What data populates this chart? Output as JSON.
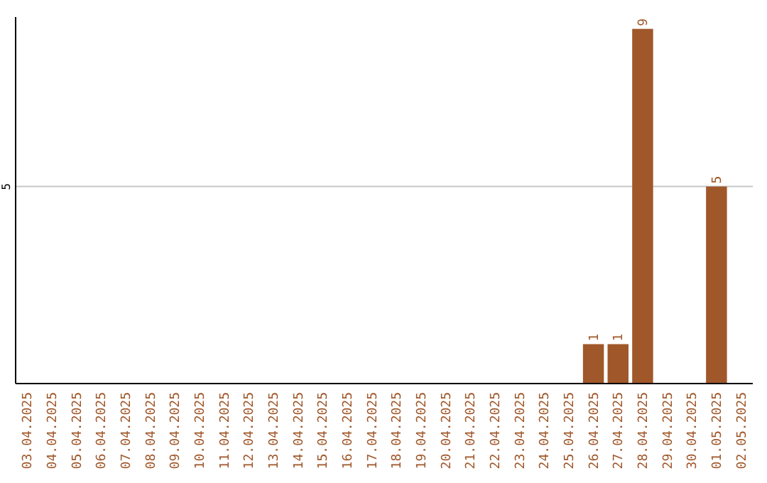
{
  "chart_data": {
    "type": "bar",
    "categories": [
      "03.04.2025",
      "04.04.2025",
      "05.04.2025",
      "06.04.2025",
      "07.04.2025",
      "08.04.2025",
      "09.04.2025",
      "10.04.2025",
      "11.04.2025",
      "12.04.2025",
      "13.04.2025",
      "14.04.2025",
      "15.04.2025",
      "16.04.2025",
      "17.04.2025",
      "18.04.2025",
      "19.04.2025",
      "20.04.2025",
      "21.04.2025",
      "22.04.2025",
      "23.04.2025",
      "24.04.2025",
      "25.04.2025",
      "26.04.2025",
      "27.04.2025",
      "28.04.2025",
      "29.04.2025",
      "30.04.2025",
      "01.05.2025",
      "02.05.2025"
    ],
    "values": [
      null,
      null,
      null,
      null,
      null,
      null,
      null,
      null,
      null,
      null,
      null,
      null,
      null,
      null,
      null,
      null,
      null,
      null,
      null,
      null,
      null,
      null,
      null,
      1,
      1,
      9,
      null,
      null,
      5,
      null
    ],
    "data_labels": true,
    "color": "#a0572a",
    "ylim": [
      0,
      9.3
    ],
    "ref_lines": [
      {
        "axis": "y",
        "value": 5,
        "label": "5",
        "color": "#c8c8c8"
      }
    ]
  }
}
